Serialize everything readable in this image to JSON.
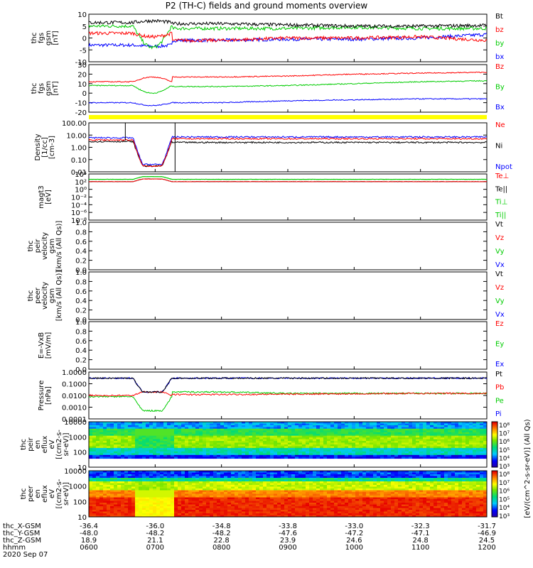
{
  "title": "P2 (TH-C) fields and ground moments overview",
  "colors": {
    "black": "#000000",
    "red": "#ff0000",
    "green": "#00cc00",
    "blue": "#0000ff",
    "yellow": "#ffff00"
  },
  "panels": [
    {
      "id": "fgs-gsm",
      "ylabel": [
        "thc",
        "fgs",
        "gsm",
        "[nT]"
      ],
      "ticks": [
        "10",
        "5",
        "0",
        "-5",
        "-10"
      ],
      "legend": [
        {
          "text": "Bt",
          "color": "black"
        },
        {
          "text": "bz",
          "color": "red"
        },
        {
          "text": "by",
          "color": "green"
        },
        {
          "text": "bx",
          "color": "blue"
        }
      ]
    },
    {
      "id": "fgs-gsm-ground",
      "ylabel": [
        "thc",
        "fgs",
        "gsm",
        "[nT]"
      ],
      "ticks": [
        "30",
        "20",
        "10",
        "0",
        "-10",
        "-20"
      ],
      "legend": [
        {
          "text": "Bz",
          "color": "red"
        },
        {
          "text": "By",
          "color": "green"
        },
        {
          "text": "Bx",
          "color": "blue"
        }
      ]
    },
    {
      "id": "density",
      "ylabel": [
        "Density",
        "[1/cc]",
        "[cm-3]"
      ],
      "ticks": [
        "100.00",
        "10.00",
        "1.00",
        "0.10",
        "0.01"
      ],
      "legend": [
        {
          "text": "Ne",
          "color": "red"
        },
        {
          "text": "Ni",
          "color": "black"
        },
        {
          "text": "Npot",
          "color": "blue"
        }
      ]
    },
    {
      "id": "temperature",
      "ylabel": [
        "magt3",
        "[eV]"
      ],
      "ticks": [
        "10⁴",
        "10²",
        "10⁰",
        "10⁻²",
        "10⁻⁴",
        "10⁻⁶",
        "10⁻⁸"
      ],
      "legend": [
        {
          "text": "Te⊥",
          "color": "red"
        },
        {
          "text": "Te||",
          "color": "black"
        },
        {
          "text": "Ti⊥",
          "color": "green"
        },
        {
          "text": "Ti||",
          "color": "green"
        }
      ]
    },
    {
      "id": "peir-velocity",
      "ylabel": [
        "thc",
        "peir",
        "velocity",
        "gsm",
        "[km/s (All Qs)]"
      ],
      "ticks": [
        "1.0",
        "0.8",
        "0.6",
        "0.4",
        "0.2",
        "0.0"
      ],
      "legend": [
        {
          "text": "Vt",
          "color": "black"
        },
        {
          "text": "Vz",
          "color": "red"
        },
        {
          "text": "Vy",
          "color": "green"
        },
        {
          "text": "Vx",
          "color": "blue"
        }
      ]
    },
    {
      "id": "peer-velocity",
      "ylabel": [
        "thc",
        "peer",
        "velocity",
        "gsm",
        "[km/s (All Qs)]"
      ],
      "ticks": [
        "1.0",
        "0.8",
        "0.6",
        "0.4",
        "0.2",
        "0.0"
      ],
      "legend": [
        {
          "text": "Vt",
          "color": "black"
        },
        {
          "text": "Vz",
          "color": "red"
        },
        {
          "text": "Vy",
          "color": "green"
        },
        {
          "text": "Vx",
          "color": "blue"
        }
      ]
    },
    {
      "id": "efield",
      "ylabel": [
        "E=-VxB",
        "[mV/m]"
      ],
      "ticks": [
        "1.0",
        "0.8",
        "0.6",
        "0.4",
        "0.2",
        "0.0"
      ],
      "legend": [
        {
          "text": "Ez",
          "color": "red"
        },
        {
          "text": "Ey",
          "color": "green"
        },
        {
          "text": "Ex",
          "color": "blue"
        }
      ]
    },
    {
      "id": "pressure",
      "ylabel": [
        "Pressure",
        "[nPa]"
      ],
      "ticks": [
        "1.0000",
        "0.1000",
        "0.0100",
        "0.0010",
        "0.0001"
      ],
      "legend": [
        {
          "text": "Pt",
          "color": "black"
        },
        {
          "text": "Pb",
          "color": "red"
        },
        {
          "text": "Pe",
          "color": "green"
        },
        {
          "text": "Pi",
          "color": "blue"
        }
      ]
    },
    {
      "id": "peir-spectrogram",
      "ylabel": [
        "thc",
        "peir",
        "en",
        "eflux",
        "eV",
        "[(cm2-s-",
        "sr-eV)]"
      ],
      "ticks": [
        "10000",
        "1000",
        "100",
        "10"
      ],
      "legend": []
    },
    {
      "id": "peer-spectrogram",
      "ylabel": [
        "thc",
        "peer",
        "en",
        "eflux",
        "eV",
        "[(cm2-s-",
        "sr-eV)]"
      ],
      "ticks": [
        "10000",
        "1000",
        "100",
        "10"
      ],
      "legend": []
    }
  ],
  "colorbar": {
    "label": "[eV/(cm^2-s-sr-eV)] (All Qs)",
    "ticks": [
      "10⁸",
      "10⁷",
      "10⁶",
      "10⁵",
      "10⁴",
      "10³"
    ]
  },
  "x_axis": {
    "row_labels": [
      "thc_X-GSM",
      "thc_Y-GSM",
      "thc_Z-GSM",
      "hhmm",
      "2020 Sep 07"
    ],
    "columns": [
      {
        "x_gsm": "-36.4",
        "y_gsm": "-48.0",
        "z_gsm": "18.9",
        "hhmm": "0600"
      },
      {
        "x_gsm": "-36.0",
        "y_gsm": "-48.2",
        "z_gsm": "21.1",
        "hhmm": "0700"
      },
      {
        "x_gsm": "-34.8",
        "y_gsm": "-48.2",
        "z_gsm": "22.8",
        "hhmm": "0800"
      },
      {
        "x_gsm": "-33.8",
        "y_gsm": "-47.6",
        "z_gsm": "23.9",
        "hhmm": "0900"
      },
      {
        "x_gsm": "-33.0",
        "y_gsm": "-47.2",
        "z_gsm": "24.6",
        "hhmm": "1000"
      },
      {
        "x_gsm": "-32.3",
        "y_gsm": "-47.1",
        "z_gsm": "24.8",
        "hhmm": "1100"
      },
      {
        "x_gsm": "-31.7",
        "y_gsm": "-46.9",
        "z_gsm": "24.5",
        "hhmm": "1200"
      }
    ]
  },
  "chart_data": {
    "type": "line",
    "title": "P2 (TH-C) fields and ground moments overview",
    "x_unit": "hhmm",
    "x_range": [
      "0600",
      "1200"
    ],
    "dip_interval": [
      "0640",
      "0715"
    ],
    "panels": [
      {
        "id": "fgs-gsm",
        "ylim": [
          -10,
          10
        ],
        "series": [
          {
            "name": "Bt",
            "color": "black",
            "values": [
              6.5,
              7.2,
              6.0,
              5.5,
              5.0,
              5.0,
              5.3
            ]
          },
          {
            "name": "bz",
            "color": "red",
            "values": [
              2.0,
              0.5,
              -1.0,
              0.0,
              0.0,
              0.5,
              -1.0
            ]
          },
          {
            "name": "by",
            "color": "green",
            "values": [
              5.0,
              -4.0,
              4.0,
              4.0,
              4.5,
              4.0,
              4.0
            ]
          },
          {
            "name": "bx",
            "color": "blue",
            "values": [
              -3.0,
              -3.5,
              -1.0,
              -0.5,
              -0.5,
              0.0,
              1.5
            ]
          }
        ]
      },
      {
        "id": "fgs-gsm-ground",
        "ylim": [
          -20,
          30
        ],
        "series": [
          {
            "name": "Bz",
            "color": "red",
            "values": [
              12,
              17,
              17,
              18,
              20,
              21,
              22
            ]
          },
          {
            "name": "By",
            "color": "green",
            "values": [
              8,
              0,
              7,
              8,
              10,
              12,
              13
            ]
          },
          {
            "name": "Bx",
            "color": "blue",
            "values": [
              -10,
              -13,
              -10,
              -8,
              -7,
              -6,
              -6
            ]
          }
        ]
      },
      {
        "id": "density",
        "scale": "log",
        "ylim": [
          0.01,
          100
        ],
        "series": [
          {
            "name": "Ne",
            "color": "red",
            "values": [
              4,
              0.03,
              5,
              5,
              5,
              5,
              5
            ]
          },
          {
            "name": "Ni",
            "color": "black",
            "values": [
              3,
              0.03,
              2.5,
              2.5,
              2.5,
              2.5,
              2.5
            ]
          },
          {
            "name": "Npot",
            "color": "blue",
            "values": [
              6,
              0.04,
              7,
              7,
              7,
              7,
              7
            ]
          }
        ]
      },
      {
        "id": "temperature",
        "scale": "log",
        "ylim": [
          1e-08,
          10000
        ],
        "series": [
          {
            "name": "Te⊥",
            "color": "red",
            "values": [
              100,
              500,
              100,
              100,
              100,
              100,
              100
            ]
          },
          {
            "name": "Te||",
            "color": "black",
            "values": [
              100,
              500,
              100,
              100,
              100,
              100,
              100
            ]
          },
          {
            "name": "Ti⊥",
            "color": "green",
            "values": [
              400,
              2000,
              400,
              400,
              400,
              400,
              400
            ]
          },
          {
            "name": "Ti||",
            "color": "green",
            "values": [
              400,
              2000,
              400,
              400,
              400,
              400,
              400
            ]
          }
        ]
      },
      {
        "id": "pressure",
        "scale": "log",
        "ylim": [
          0.0001,
          1
        ],
        "series": [
          {
            "name": "Pt",
            "color": "black",
            "values": [
              0.3,
              0.02,
              0.3,
              0.3,
              0.3,
              0.3,
              0.3
            ]
          },
          {
            "name": "Pb",
            "color": "red",
            "values": [
              0.01,
              0.02,
              0.012,
              0.013,
              0.014,
              0.015,
              0.015
            ]
          },
          {
            "name": "Pe",
            "color": "green",
            "values": [
              0.008,
              0.0005,
              0.02,
              0.015,
              0.015,
              0.015,
              0.015
            ]
          },
          {
            "name": "Pi",
            "color": "blue",
            "values": [
              0.3,
              0.02,
              0.3,
              0.3,
              0.3,
              0.3,
              0.3
            ]
          }
        ]
      }
    ]
  }
}
